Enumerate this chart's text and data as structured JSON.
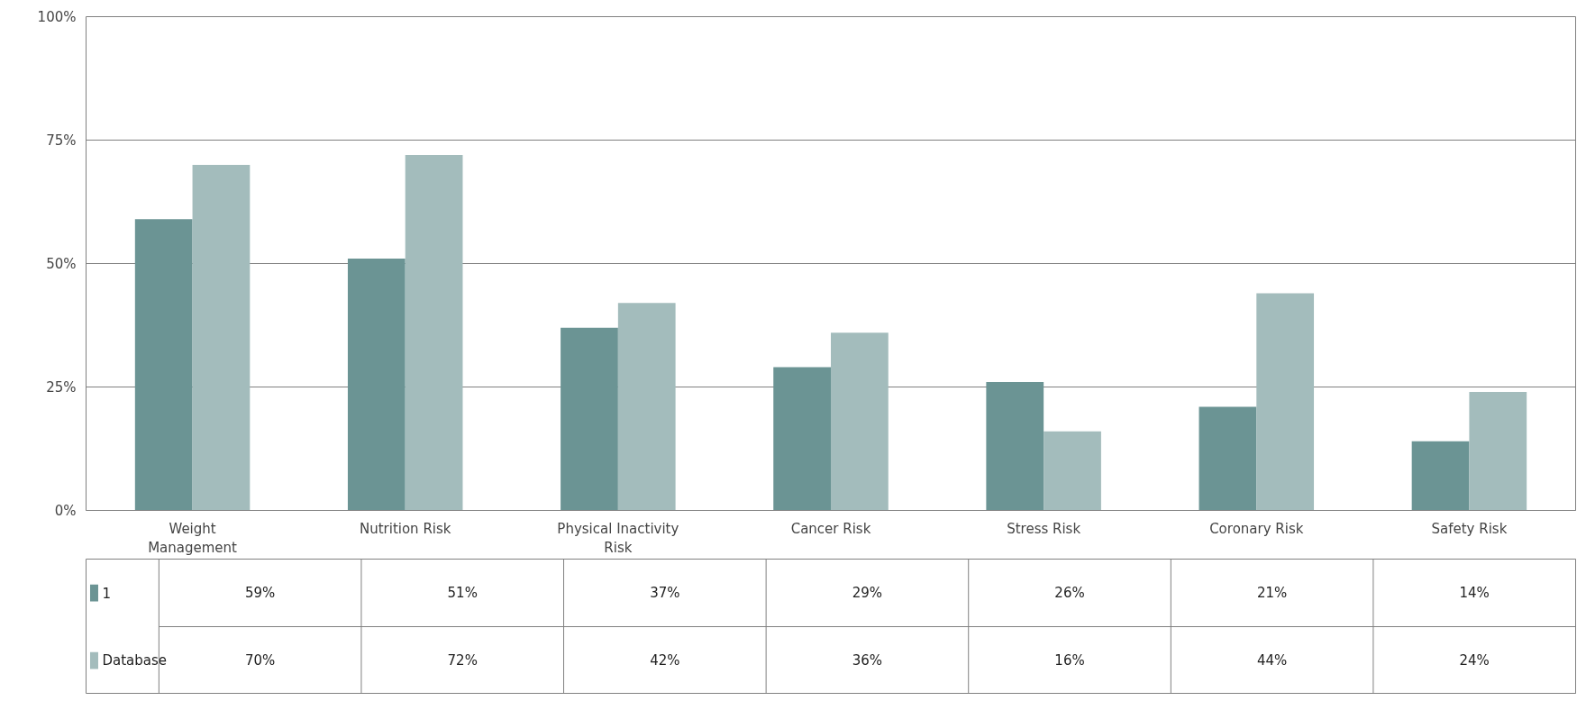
{
  "chart_data": {
    "type": "bar",
    "categories": [
      "Weight\nManagement",
      "Nutrition Risk",
      "Physical Inactivity\nRisk",
      "Cancer Risk",
      "Stress Risk",
      "Coronary Risk",
      "Safety Risk"
    ],
    "series": [
      {
        "name": "1",
        "color": "#6b9494",
        "values": [
          59,
          51,
          37,
          29,
          26,
          21,
          14
        ],
        "value_labels": [
          "59%",
          "51%",
          "37%",
          "29%",
          "26%",
          "21%",
          "14%"
        ]
      },
      {
        "name": "Database",
        "color": "#a3bcbc",
        "values": [
          70,
          72,
          42,
          36,
          16,
          44,
          24
        ],
        "value_labels": [
          "70%",
          "72%",
          "42%",
          "36%",
          "16%",
          "44%",
          "24%"
        ]
      }
    ],
    "ylim": [
      0,
      100
    ],
    "yticks": [
      {
        "value": 0,
        "label": "0%"
      },
      {
        "value": 25,
        "label": "25%"
      },
      {
        "value": 50,
        "label": "50%"
      },
      {
        "value": 75,
        "label": "75%"
      },
      {
        "value": 100,
        "label": "100%"
      }
    ],
    "grid": "y",
    "legend": "bottom left"
  }
}
